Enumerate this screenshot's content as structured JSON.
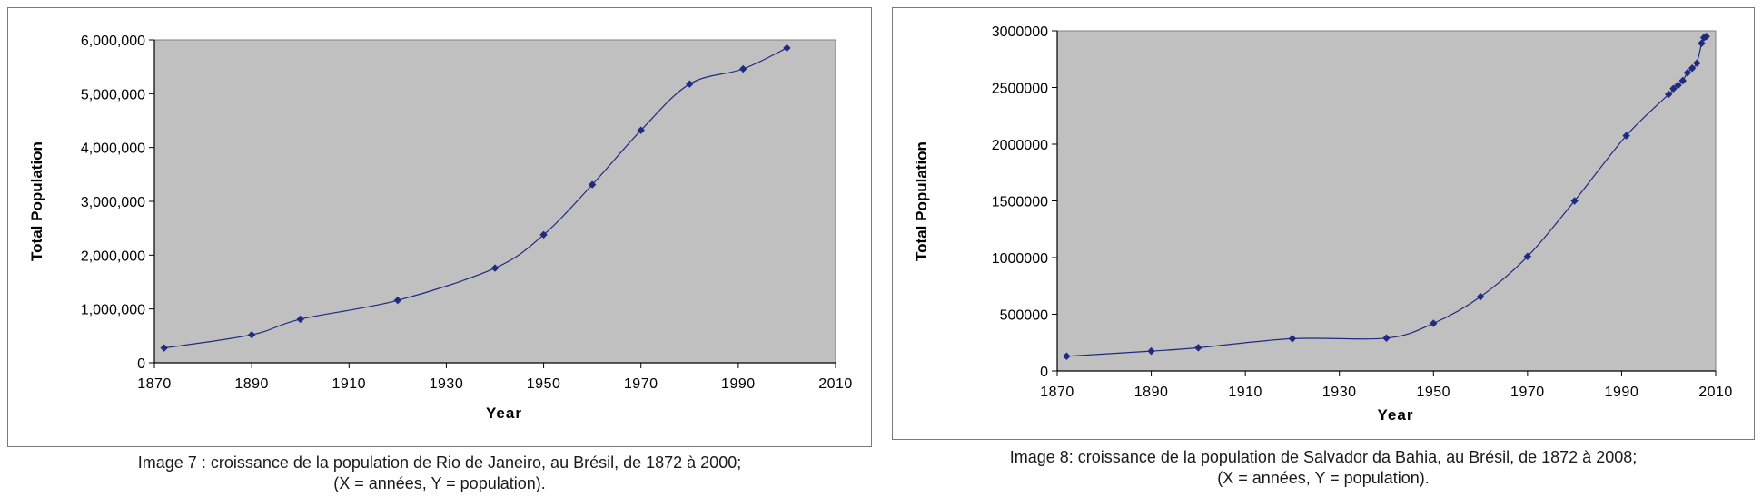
{
  "chart_data": [
    {
      "type": "line",
      "title": "",
      "xlabel": "Year",
      "ylabel": "Total Population",
      "xlim": [
        1870,
        2010
      ],
      "ylim": [
        0,
        6000000
      ],
      "x_ticks": [
        1870,
        1890,
        1910,
        1930,
        1950,
        1970,
        1990,
        2010
      ],
      "y_ticks": [
        0,
        1000000,
        2000000,
        3000000,
        4000000,
        5000000,
        6000000
      ],
      "y_tick_labels": [
        "0",
        "1,000,000",
        "2,000,000",
        "3,000,000",
        "4,000,000",
        "5,000,000",
        "6,000,000"
      ],
      "grid": false,
      "plot_background": "#c0c0c0",
      "line_color": "#1f2a80",
      "series": [
        {
          "x": [
            1872,
            1890,
            1900,
            1920,
            1940,
            1950,
            1960,
            1970,
            1980,
            1991,
            2000
          ],
          "y": [
            275000,
            520000,
            810000,
            1160000,
            1760000,
            2380000,
            3310000,
            4320000,
            5180000,
            5460000,
            5850000
          ]
        }
      ],
      "caption_line1": "Image 7 : croissance de la population de Rio de Janeiro, au Brésil, de 1872 à 2000;",
      "caption_line2": "(X  = années, Y = population)."
    },
    {
      "type": "line",
      "title": "",
      "xlabel": "Year",
      "ylabel": "Total Population",
      "xlim": [
        1870,
        2010
      ],
      "ylim": [
        0,
        3000000
      ],
      "x_ticks": [
        1870,
        1890,
        1910,
        1930,
        1950,
        1970,
        1990,
        2010
      ],
      "y_ticks": [
        0,
        500000,
        1000000,
        1500000,
        2000000,
        2500000,
        3000000
      ],
      "y_tick_labels": [
        "0",
        "500000",
        "1000000",
        "1500000",
        "2000000",
        "2500000",
        "3000000"
      ],
      "grid": false,
      "plot_background": "#c0c0c0",
      "line_color": "#1f2a80",
      "series": [
        {
          "x": [
            1872,
            1890,
            1900,
            1920,
            1940,
            1950,
            1960,
            1970,
            1980,
            1991,
            2000,
            2001,
            2002,
            2003,
            2004,
            2005,
            2006,
            2007,
            2007.5,
            2008
          ],
          "y": [
            130000,
            175000,
            205000,
            285000,
            290000,
            420000,
            655000,
            1010000,
            1500000,
            2075000,
            2440000,
            2490000,
            2520000,
            2560000,
            2630000,
            2670000,
            2715000,
            2890000,
            2940000,
            2950000
          ]
        }
      ],
      "caption_line1": "Image 8: croissance de la population de Salvador da Bahia, au Brésil, de 1872 à 2008;",
      "caption_line2": "(X = années, Y = population)."
    }
  ]
}
